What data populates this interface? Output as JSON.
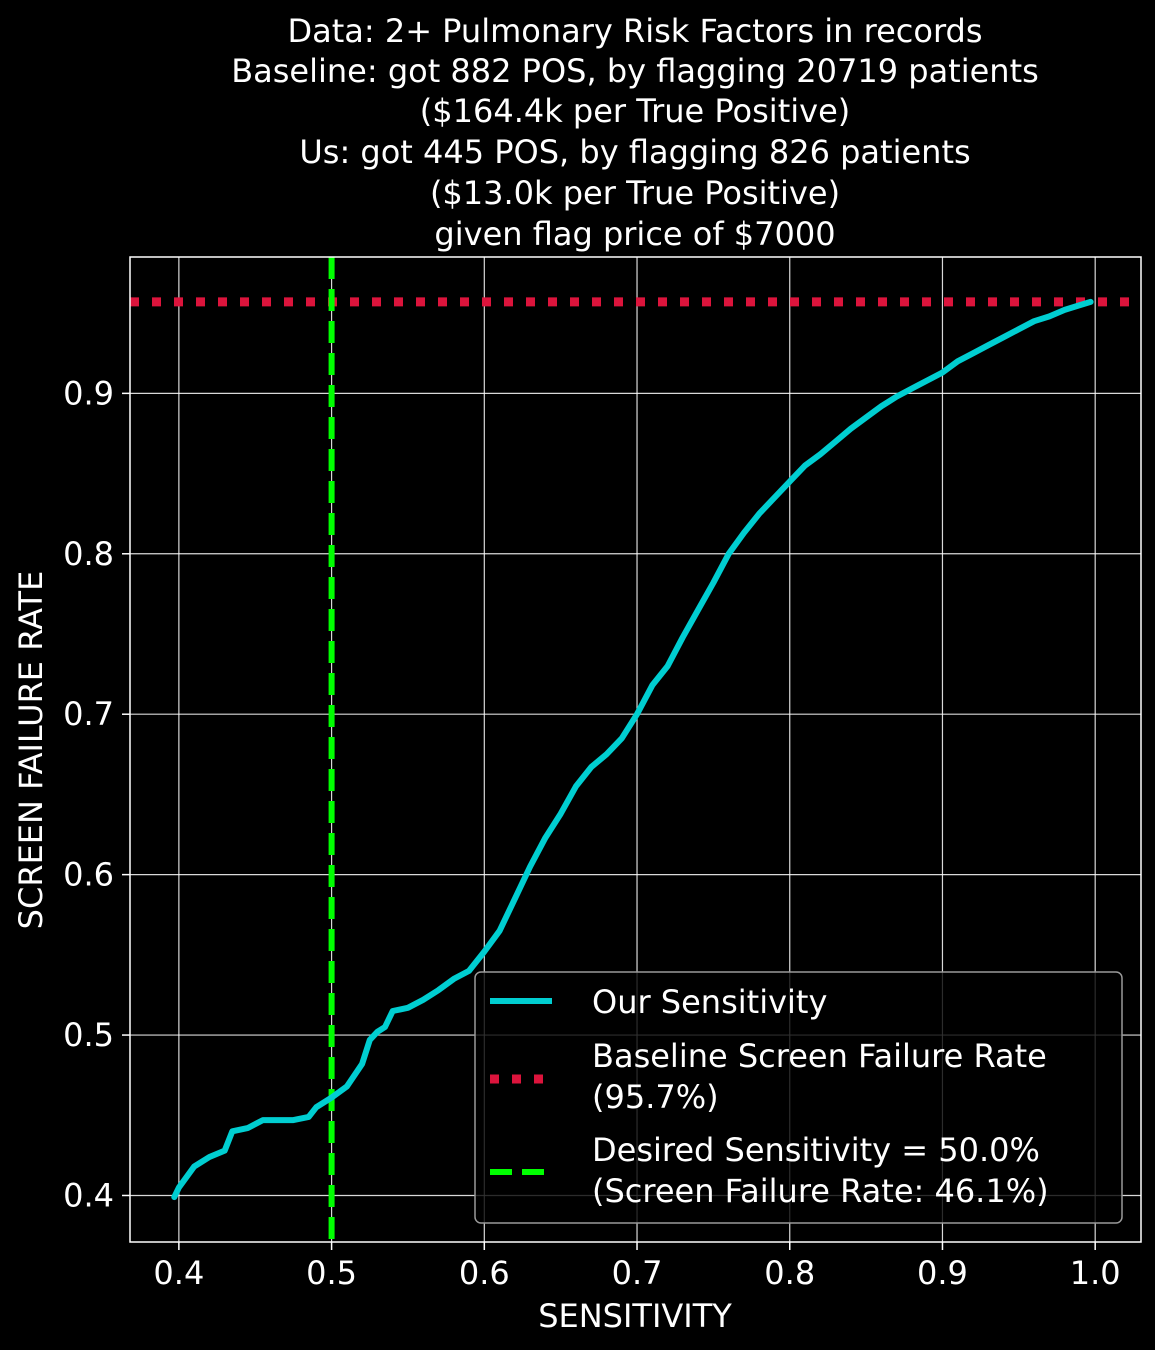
{
  "chart_data": {
    "type": "line",
    "title_lines": [
      "Data: 2+ Pulmonary Risk Factors in records",
      "Baseline: got 882 POS, by flagging 20719 patients",
      "($164.4k per True Positive)",
      "Us: got 445 POS, by flagging 826 patients",
      "($13.0k per True Positive)",
      "given flag price of $7000"
    ],
    "xlabel": "SENSITIVITY",
    "ylabel": "SCREEN FAILURE RATE",
    "xlim": [
      0.368,
      1.03
    ],
    "ylim": [
      0.371,
      0.985
    ],
    "xticks": [
      0.4,
      0.5,
      0.6,
      0.7,
      0.8,
      0.9,
      1.0
    ],
    "xtick_labels": [
      "0.4",
      "0.5",
      "0.6",
      "0.7",
      "0.8",
      "0.9",
      "1.0"
    ],
    "yticks": [
      0.4,
      0.5,
      0.6,
      0.7,
      0.8,
      0.9
    ],
    "ytick_labels": [
      "0.4",
      "0.5",
      "0.6",
      "0.7",
      "0.8",
      "0.9"
    ],
    "grid": true,
    "legend_position": "lower-right",
    "series": [
      {
        "name": "Our Sensitivity",
        "style": "solid",
        "color": "#00CED1",
        "x": [
          0.397,
          0.4,
          0.41,
          0.42,
          0.43,
          0.435,
          0.445,
          0.455,
          0.465,
          0.475,
          0.485,
          0.49,
          0.5,
          0.51,
          0.52,
          0.525,
          0.53,
          0.535,
          0.54,
          0.545,
          0.55,
          0.56,
          0.57,
          0.58,
          0.59,
          0.6,
          0.61,
          0.62,
          0.63,
          0.64,
          0.65,
          0.66,
          0.67,
          0.68,
          0.69,
          0.7,
          0.71,
          0.72,
          0.73,
          0.74,
          0.75,
          0.76,
          0.77,
          0.78,
          0.79,
          0.8,
          0.81,
          0.82,
          0.83,
          0.84,
          0.85,
          0.86,
          0.87,
          0.88,
          0.89,
          0.9,
          0.91,
          0.92,
          0.93,
          0.94,
          0.95,
          0.96,
          0.97,
          0.98,
          0.99,
          0.997
        ],
        "y": [
          0.399,
          0.405,
          0.418,
          0.424,
          0.428,
          0.44,
          0.442,
          0.447,
          0.447,
          0.447,
          0.449,
          0.455,
          0.461,
          0.468,
          0.482,
          0.497,
          0.502,
          0.505,
          0.515,
          0.516,
          0.517,
          0.522,
          0.528,
          0.535,
          0.54,
          0.552,
          0.565,
          0.585,
          0.605,
          0.623,
          0.638,
          0.655,
          0.667,
          0.675,
          0.685,
          0.7,
          0.718,
          0.73,
          0.748,
          0.765,
          0.782,
          0.8,
          0.813,
          0.825,
          0.835,
          0.845,
          0.855,
          0.862,
          0.87,
          0.878,
          0.885,
          0.892,
          0.898,
          0.903,
          0.908,
          0.913,
          0.92,
          0.925,
          0.93,
          0.935,
          0.94,
          0.945,
          0.948,
          0.952,
          0.955,
          0.957
        ]
      },
      {
        "name": "Baseline Screen Failure Rate",
        "name_line2": "(95.7%)",
        "style": "dotted",
        "color": "#DC143C",
        "orientation": "horizontal",
        "y": 0.957
      },
      {
        "name": "Desired Sensitivity = 50.0%",
        "name_line2": "(Screen Failure Rate: 46.1%)",
        "style": "dashed",
        "color": "#00FF00",
        "orientation": "vertical",
        "x": 0.5
      }
    ]
  }
}
